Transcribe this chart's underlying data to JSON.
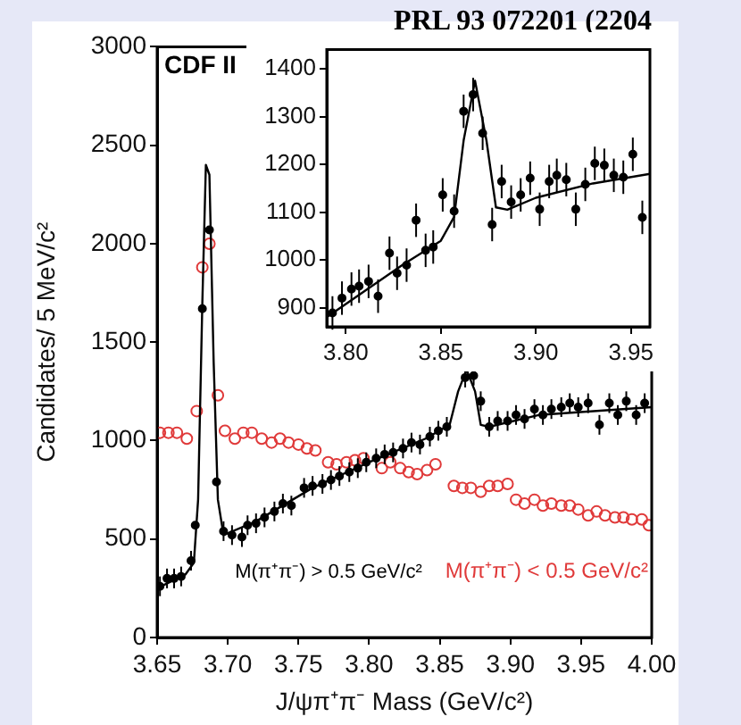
{
  "chart_data": [
    {
      "type": "scatter",
      "title": "PRL 93 072201 (2204",
      "xlabel": "J/ψπ⁺π⁻ Mass (GeV/c²)",
      "ylabel": "Candidates/ 5 MeV/c²",
      "annotations": [
        "CDF II"
      ],
      "xlim": [
        3.65,
        4.0
      ],
      "xticks": [
        {
          "value": 3.65,
          "label": "3.65"
        },
        {
          "value": 3.7,
          "label": "3.70"
        },
        {
          "value": 3.75,
          "label": "3.75"
        },
        {
          "value": 3.8,
          "label": "3.80"
        },
        {
          "value": 3.85,
          "label": "3.85"
        },
        {
          "value": 3.9,
          "label": "3.90"
        },
        {
          "value": 3.95,
          "label": "3.95"
        },
        {
          "value": 4.0,
          "label": "4.00"
        }
      ],
      "ylim": [
        0,
        3000
      ],
      "yticks": [
        0,
        500,
        1000,
        1500,
        2000,
        2500,
        3000
      ],
      "grid": false,
      "legend": false,
      "series": [
        {
          "name": "M(π⁺π⁻) > 0.5 GeV/c²",
          "color": "#000000",
          "marker": "circle",
          "x": [
            3.652,
            3.657,
            3.662,
            3.667,
            3.674,
            3.677,
            3.682,
            3.687,
            3.692,
            3.697,
            3.703,
            3.71,
            3.714,
            3.72,
            3.726,
            3.733,
            3.739,
            3.745,
            3.754,
            3.76,
            3.767,
            3.773,
            3.779,
            3.786,
            3.792,
            3.798,
            3.805,
            3.811,
            3.817,
            3.824,
            3.83,
            3.836,
            3.843,
            3.849,
            3.855,
            3.868,
            3.874,
            3.879,
            3.885,
            3.891,
            3.898,
            3.904,
            3.91,
            3.917,
            3.923,
            3.929,
            3.936,
            3.942,
            3.948,
            3.955,
            3.963,
            3.97,
            3.976,
            3.982,
            3.989,
            3.995
          ],
          "values": [
            260,
            300,
            300,
            310,
            390,
            570,
            1670,
            2070,
            790,
            540,
            520,
            510,
            570,
            580,
            610,
            640,
            680,
            670,
            760,
            770,
            780,
            800,
            820,
            840,
            860,
            890,
            910,
            930,
            940,
            960,
            990,
            980,
            1020,
            1050,
            1070,
            1320,
            1330,
            1200,
            1070,
            1100,
            1100,
            1130,
            1110,
            1160,
            1130,
            1160,
            1170,
            1190,
            1170,
            1190,
            1080,
            1190,
            1130,
            1200,
            1130,
            1190
          ],
          "errors": [
            50,
            50,
            50,
            50,
            50,
            null,
            null,
            null,
            null,
            50,
            50,
            50,
            50,
            50,
            50,
            50,
            50,
            50,
            50,
            50,
            50,
            50,
            50,
            50,
            50,
            50,
            50,
            50,
            50,
            50,
            50,
            50,
            50,
            50,
            50,
            50,
            50,
            50,
            50,
            50,
            50,
            50,
            50,
            50,
            50,
            50,
            50,
            50,
            50,
            50,
            50,
            50,
            50,
            50,
            50,
            50
          ]
        },
        {
          "type": "line",
          "color": "#000000",
          "marker": "none",
          "x": [
            3.65,
            3.67,
            3.676,
            3.679,
            3.682,
            3.6845,
            3.687,
            3.69,
            3.693,
            3.697,
            3.72,
            3.76,
            3.8,
            3.84,
            3.857,
            3.863,
            3.869,
            3.875,
            3.879,
            3.885,
            3.92,
            4.0
          ],
          "values": [
            250,
            320,
            380,
            700,
            1700,
            2400,
            2350,
            1400,
            700,
            520,
            590,
            760,
            890,
            1010,
            1080,
            1250,
            1360,
            1250,
            1080,
            1070,
            1130,
            1170
          ]
        },
        {
          "name": "M(π⁺π⁻) < 0.5 GeV/c²",
          "color": "#e03a3a",
          "marker": "circle",
          "x": [
            3.652,
            3.658,
            3.664,
            3.671,
            3.678,
            3.682,
            3.687,
            3.693,
            3.698,
            3.705,
            3.711,
            3.717,
            3.724,
            3.731,
            3.737,
            3.743,
            3.75,
            3.756,
            3.762,
            3.771,
            3.777,
            3.784,
            3.79,
            3.796,
            3.803,
            3.809,
            3.815,
            3.822,
            3.828,
            3.834,
            3.841,
            3.847,
            3.86,
            3.866,
            3.872,
            3.879,
            3.885,
            3.891,
            3.898,
            3.904,
            3.91,
            3.917,
            3.923,
            3.929,
            3.936,
            3.942,
            3.948,
            3.955,
            3.961,
            3.967,
            3.974,
            3.98,
            3.986,
            3.993,
            3.998
          ],
          "values": [
            1040,
            1040,
            1040,
            1010,
            1150,
            1880,
            2000,
            1230,
            1050,
            1010,
            1040,
            1040,
            1010,
            990,
            1010,
            990,
            980,
            960,
            950,
            890,
            880,
            890,
            900,
            910,
            null,
            860,
            890,
            860,
            840,
            830,
            850,
            880,
            770,
            760,
            760,
            740,
            770,
            770,
            780,
            700,
            680,
            700,
            670,
            680,
            670,
            670,
            650,
            620,
            640,
            620,
            610,
            610,
            600,
            600,
            570
          ]
        }
      ]
    },
    {
      "type": "scatter",
      "xlim": [
        3.79,
        3.96
      ],
      "xticks": [
        {
          "value": 3.8,
          "label": "3.80"
        },
        {
          "value": 3.85,
          "label": "3.85"
        },
        {
          "value": 3.9,
          "label": "3.90"
        },
        {
          "value": 3.95,
          "label": "3.95"
        }
      ],
      "ylim": [
        860,
        1440
      ],
      "yticks": [
        900,
        1000,
        1100,
        1200,
        1300,
        1400
      ],
      "grid": false,
      "legend": false,
      "series": [
        {
          "color": "#000000",
          "marker": "circle",
          "x": [
            3.793,
            3.798,
            3.803,
            3.807,
            3.812,
            3.817,
            3.823,
            3.827,
            3.832,
            3.837,
            3.842,
            3.846,
            3.851,
            3.857,
            3.862,
            3.867,
            3.872,
            3.877,
            3.882,
            3.887,
            3.892,
            3.897,
            3.902,
            3.907,
            3.911,
            3.916,
            3.921,
            3.926,
            3.931,
            3.936,
            3.941,
            3.946,
            3.951,
            3.956
          ],
          "values": [
            889,
            920,
            939,
            945,
            955,
            924,
            1014,
            972,
            989,
            1083,
            1020,
            1027,
            1136,
            1102,
            1311,
            1346,
            1265,
            1074,
            1164,
            1121,
            1136,
            1171,
            1106,
            1164,
            1177,
            1168,
            1106,
            1158,
            1202,
            1198,
            1177,
            1173,
            1221,
            1089
          ],
          "errors": [
            35,
            35,
            35,
            35,
            35,
            35,
            35,
            35,
            35,
            35,
            35,
            35,
            35,
            35,
            35,
            35,
            35,
            35,
            35,
            35,
            35,
            35,
            35,
            35,
            35,
            35,
            35,
            35,
            35,
            35,
            35,
            35,
            35,
            35
          ]
        },
        {
          "type": "line",
          "color": "#000000",
          "marker": "none",
          "x": [
            3.79,
            3.83,
            3.85,
            3.857,
            3.862,
            3.868,
            3.874,
            3.879,
            3.885,
            3.9,
            3.93,
            3.96
          ],
          "values": [
            880,
            990,
            1040,
            1090,
            1250,
            1375,
            1250,
            1110,
            1105,
            1130,
            1160,
            1180
          ]
        }
      ]
    }
  ]
}
